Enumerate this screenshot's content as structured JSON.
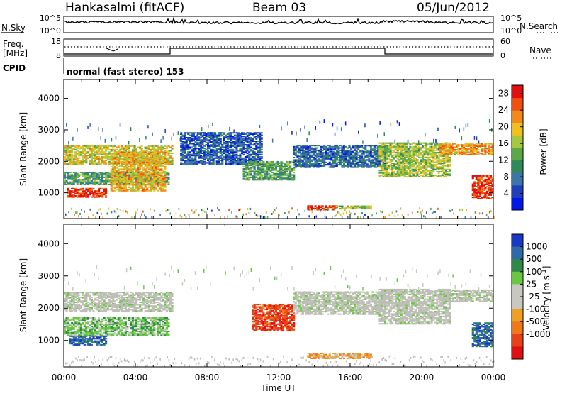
{
  "header": {
    "station": "Hankasalmi (fitACF)",
    "beam": "Beam 03",
    "date": "05/Jun/2012"
  },
  "top_panels": {
    "nsky_label": "N.Sky",
    "nsearch_label": "N.Search",
    "noise_ticks": [
      "10^5",
      "10^0"
    ],
    "freq_label_1": "Freq.",
    "freq_label_2": "[MHz]",
    "freq_ticks": [
      "18",
      "8"
    ],
    "nave_ticks": [
      "60",
      "0"
    ],
    "nave_label": "Nave",
    "cpid_label": "CPID",
    "cpid_text": "normal (fast stereo) 153"
  },
  "colors": {
    "power_scale": [
      "#0018e8",
      "#1f3fbd",
      "#3c76a8",
      "#2f8a5a",
      "#5aa848",
      "#a6c83c",
      "#f0c020",
      "#f08a18",
      "#f05010",
      "#e01010"
    ],
    "velocity_scale": [
      "#1838c8",
      "#2f6aa8",
      "#2f8a4a",
      "#6ac840",
      "#c8c8c0",
      "#c8c8c0",
      "#f0a020",
      "#f07818",
      "#e84018",
      "#e01010"
    ],
    "ground_scatter": "#bfbfb8"
  },
  "chart_data": [
    {
      "type": "heatmap",
      "panel": "power",
      "ylabel": "Slant Range [km]",
      "y_ticks": [
        1000,
        2000,
        3000,
        4000
      ],
      "ylim": [
        180,
        4600
      ],
      "x_ticks": [
        "00:00",
        "04:00",
        "08:00",
        "12:00",
        "16:00",
        "20:00",
        "00:00"
      ],
      "xlim_hours": [
        0,
        24
      ],
      "colorbar": {
        "label": "Power [dB]",
        "ticks": [
          4,
          8,
          12,
          16,
          20,
          24,
          28
        ],
        "range": [
          0,
          30
        ]
      },
      "regions": [
        {
          "t": [
            0.0,
            6.0
          ],
          "r": [
            1900,
            2500
          ],
          "level": 18
        },
        {
          "t": [
            0.2,
            2.4
          ],
          "r": [
            850,
            1150
          ],
          "level": 27
        },
        {
          "t": [
            0.0,
            5.8
          ],
          "r": [
            1250,
            1650
          ],
          "level": 12
        },
        {
          "t": [
            2.6,
            5.6
          ],
          "r": [
            1050,
            2300
          ],
          "level": 20
        },
        {
          "t": [
            6.5,
            11.0
          ],
          "r": [
            1900,
            2900
          ],
          "level": 6
        },
        {
          "t": [
            10.0,
            12.8
          ],
          "r": [
            1400,
            2000
          ],
          "level": 12
        },
        {
          "t": [
            12.8,
            18.0
          ],
          "r": [
            1800,
            2500
          ],
          "level": 7
        },
        {
          "t": [
            13.6,
            15.2
          ],
          "r": [
            450,
            580
          ],
          "level": 27
        },
        {
          "t": [
            15.2,
            17.2
          ],
          "r": [
            480,
            580
          ],
          "level": 16
        },
        {
          "t": [
            17.6,
            21.6
          ],
          "r": [
            1500,
            2600
          ],
          "level": 16
        },
        {
          "t": [
            21.0,
            24.0
          ],
          "r": [
            2200,
            2550
          ],
          "level": 22
        },
        {
          "t": [
            22.8,
            24.0
          ],
          "r": [
            800,
            1550
          ],
          "level": 27
        }
      ]
    },
    {
      "type": "heatmap",
      "panel": "velocity",
      "ylabel": "Slant Range [km]",
      "xlabel": "Time UT",
      "y_ticks": [
        1000,
        2000,
        3000,
        4000
      ],
      "ylim": [
        180,
        4600
      ],
      "x_ticks": [
        "00:00",
        "04:00",
        "08:00",
        "12:00",
        "16:00",
        "20:00",
        "00:00"
      ],
      "xlim_hours": [
        0,
        24
      ],
      "colorbar": {
        "label": "Velocity [m s^-1]",
        "ticks": [
          1000,
          500,
          100,
          25,
          -25,
          -100,
          -500,
          -1000
        ]
      },
      "regions": [
        {
          "t": [
            0.0,
            6.0
          ],
          "r": [
            1900,
            2500
          ],
          "level": 25
        },
        {
          "t": [
            0.0,
            5.8
          ],
          "r": [
            1150,
            1700
          ],
          "level": 100
        },
        {
          "t": [
            0.3,
            2.4
          ],
          "r": [
            850,
            1150
          ],
          "level": 500
        },
        {
          "t": [
            10.5,
            12.8
          ],
          "r": [
            1300,
            2100
          ],
          "level": -500
        },
        {
          "t": [
            12.8,
            18.0
          ],
          "r": [
            1800,
            2500
          ],
          "level": 25
        },
        {
          "t": [
            13.6,
            17.2
          ],
          "r": [
            430,
            600
          ],
          "level": -100
        },
        {
          "t": [
            17.6,
            21.6
          ],
          "r": [
            1500,
            2600
          ],
          "level": 25
        },
        {
          "t": [
            21.0,
            24.0
          ],
          "r": [
            2200,
            2550
          ],
          "level": 25
        },
        {
          "t": [
            22.8,
            24.0
          ],
          "r": [
            800,
            1550
          ],
          "level": 500
        }
      ]
    }
  ]
}
